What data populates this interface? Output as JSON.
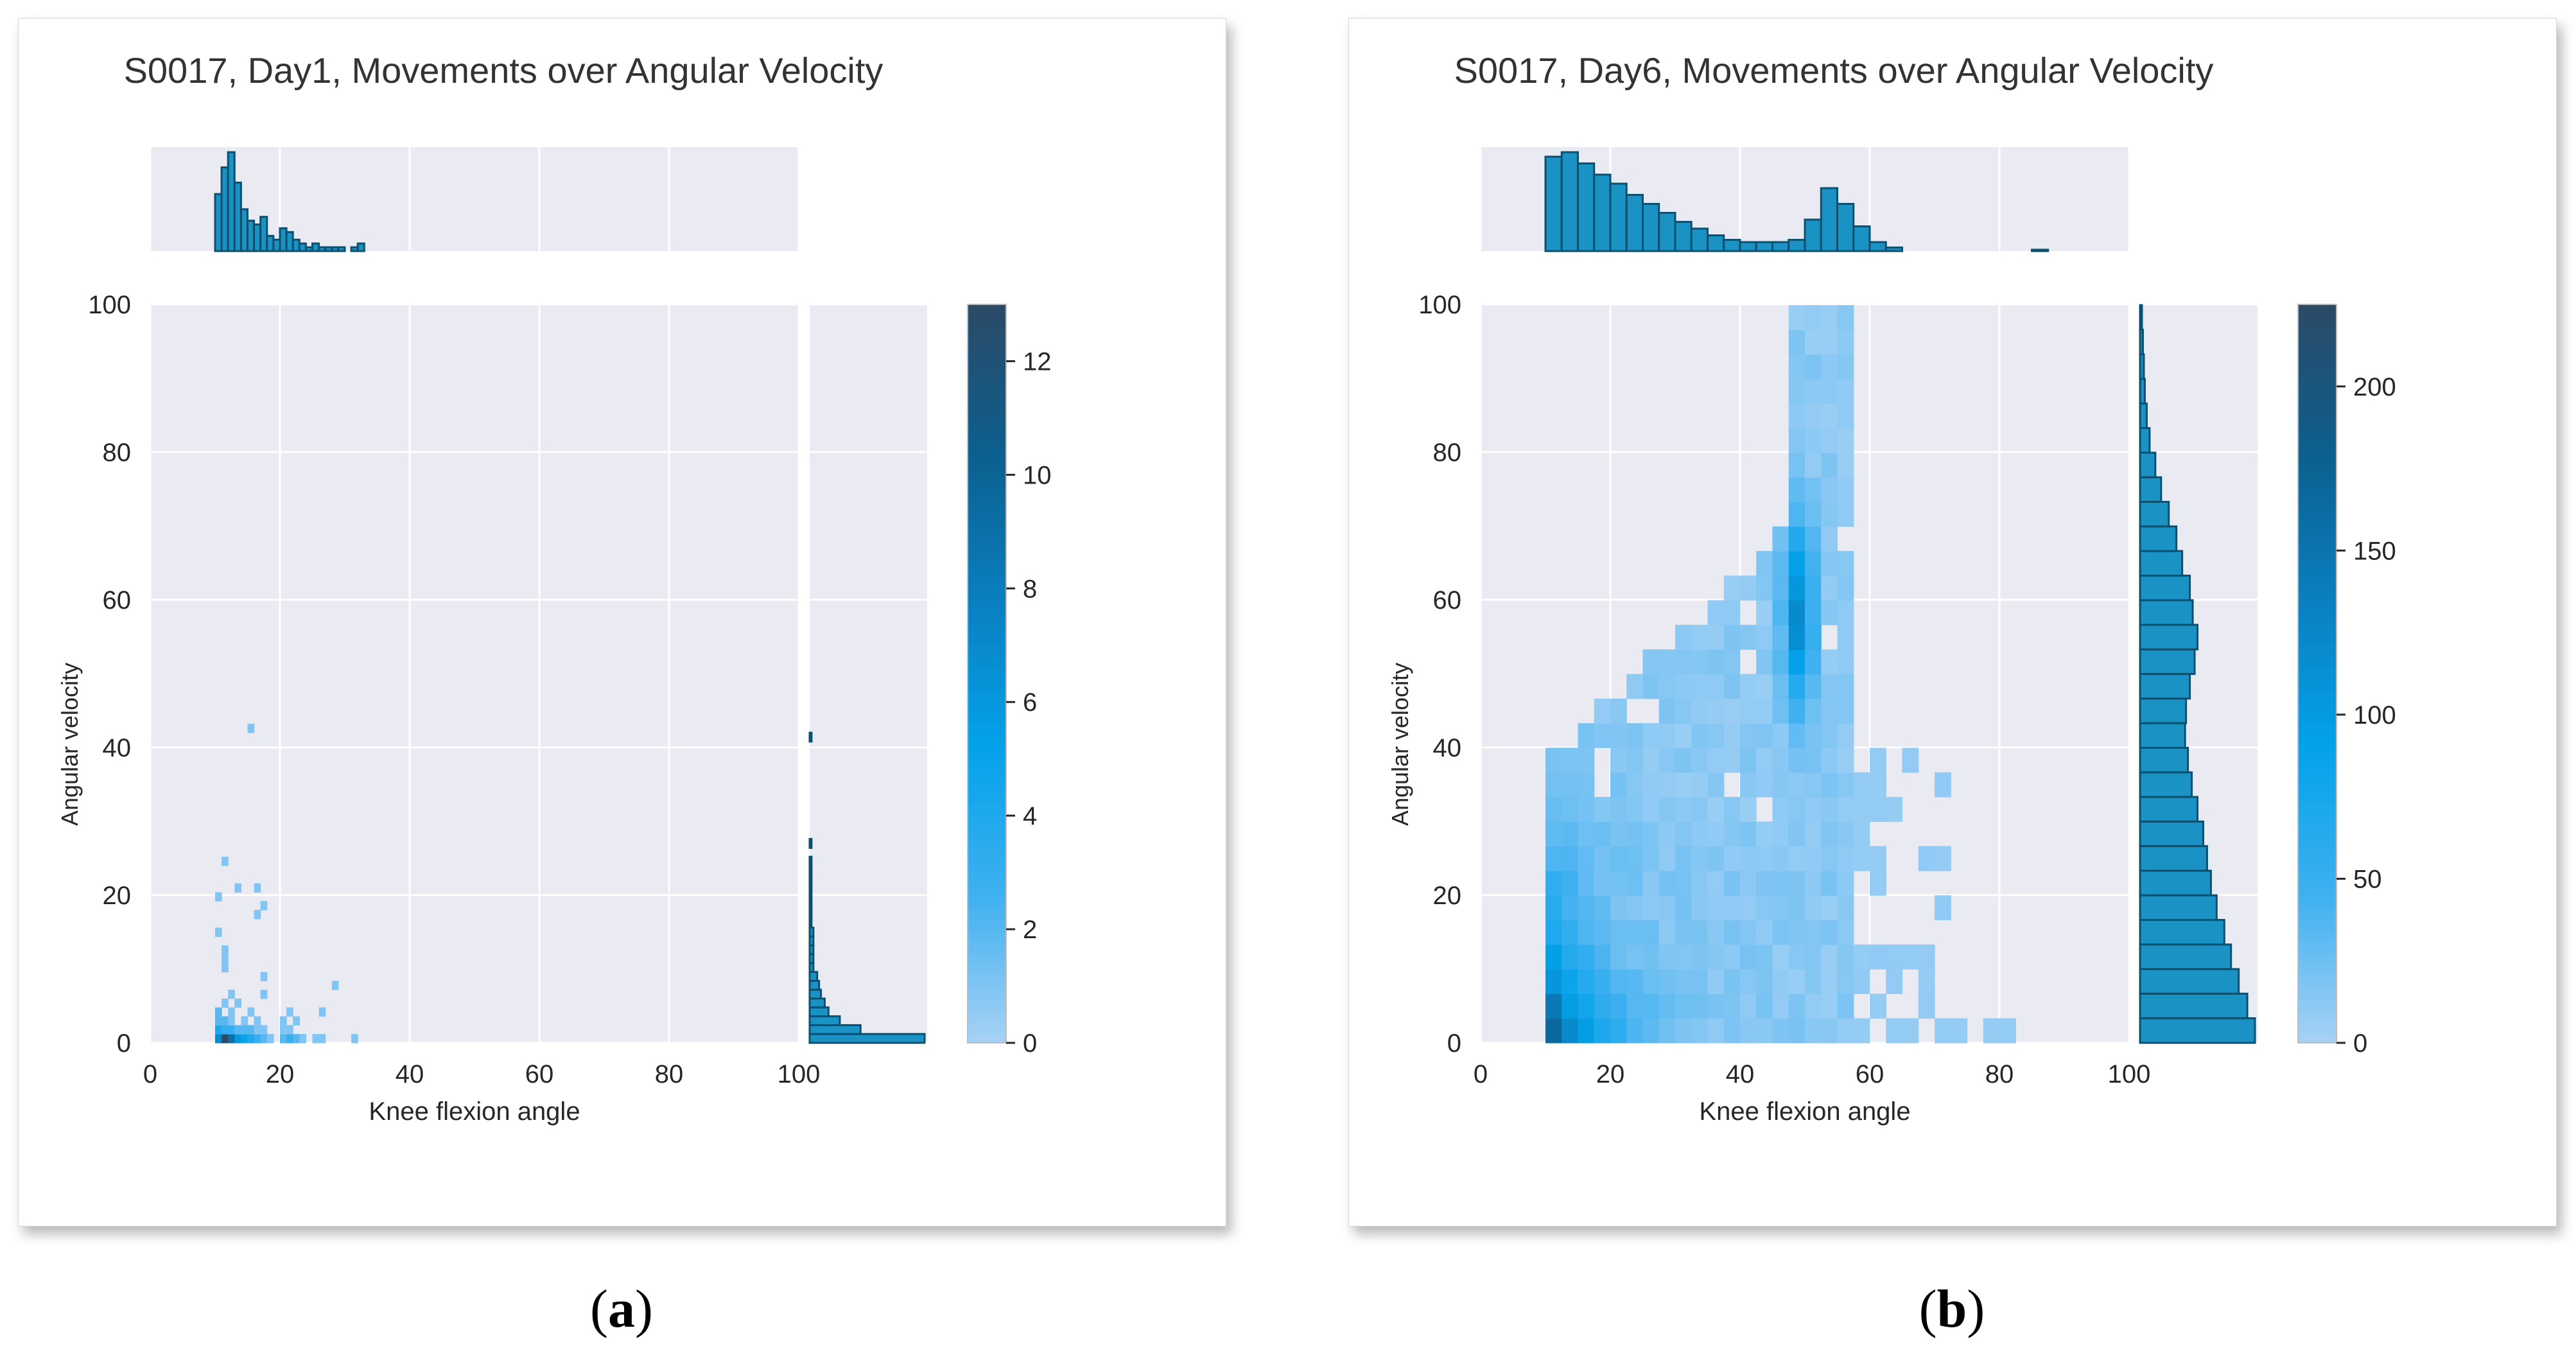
{
  "figure": {
    "panel_labels": [
      {
        "open": "(",
        "letter": "a",
        "close": ")"
      },
      {
        "open": "(",
        "letter": "b",
        "close": ")"
      }
    ]
  },
  "chart_data": [
    {
      "type": "heatmap",
      "title": "S0017, Day1, Movements over Angular Velocity",
      "xlabel": "Knee flexion angle",
      "ylabel": "Angular velocity",
      "xlim": [
        0,
        100
      ],
      "ylim": [
        0,
        100
      ],
      "xticks": [
        0,
        20,
        40,
        60,
        80,
        100
      ],
      "yticks": [
        0,
        20,
        40,
        60,
        80,
        100
      ],
      "bin_width": [
        1,
        1.2
      ],
      "colorbar": {
        "min": 0,
        "max": 13,
        "ticks": [
          0,
          2,
          4,
          6,
          8,
          10,
          12
        ]
      },
      "colors": {
        "panel_bg": "#eaeaf2",
        "grid": "#ffffff",
        "hist_fill": "#1a93c4",
        "hist_edge": "#0d4f6e",
        "cmap": [
          "#a8d2f5",
          "#3fb0f0",
          "#04a2ea",
          "#0a7fc0",
          "#0c5f8e",
          "#2c4a66"
        ]
      },
      "cells": [
        [
          10,
          0,
          7
        ],
        [
          11,
          0,
          13
        ],
        [
          12,
          0,
          9
        ],
        [
          13,
          0,
          6
        ],
        [
          14,
          0,
          5
        ],
        [
          15,
          0,
          4
        ],
        [
          16,
          0,
          3
        ],
        [
          17,
          0,
          2
        ],
        [
          18,
          0,
          1
        ],
        [
          20,
          0,
          2
        ],
        [
          21,
          0,
          3
        ],
        [
          22,
          0,
          2
        ],
        [
          23,
          0,
          1
        ],
        [
          25,
          0,
          1
        ],
        [
          26,
          0,
          1
        ],
        [
          31,
          0,
          1
        ],
        [
          10,
          1.2,
          4
        ],
        [
          11,
          1.2,
          3
        ],
        [
          12,
          1.2,
          3
        ],
        [
          13,
          1.2,
          2
        ],
        [
          14,
          1.2,
          2
        ],
        [
          15,
          1.2,
          2
        ],
        [
          16,
          1.2,
          1
        ],
        [
          17,
          1.2,
          1
        ],
        [
          20,
          1.2,
          1
        ],
        [
          21,
          1.2,
          1
        ],
        [
          10,
          2.4,
          2
        ],
        [
          11,
          2.4,
          2
        ],
        [
          12,
          2.4,
          1
        ],
        [
          14,
          2.4,
          1
        ],
        [
          16,
          2.4,
          1
        ],
        [
          20,
          2.4,
          1
        ],
        [
          22,
          2.4,
          1
        ],
        [
          10,
          3.6,
          2
        ],
        [
          12,
          3.6,
          1
        ],
        [
          15,
          3.6,
          1
        ],
        [
          21,
          3.6,
          1
        ],
        [
          26,
          3.6,
          1
        ],
        [
          11,
          4.8,
          1
        ],
        [
          13,
          4.8,
          1
        ],
        [
          12,
          6.0,
          1
        ],
        [
          17,
          6.0,
          1
        ],
        [
          28,
          7.2,
          1
        ],
        [
          17,
          8.4,
          1
        ],
        [
          11,
          9.6,
          1
        ],
        [
          11,
          10.8,
          1
        ],
        [
          11,
          12.0,
          1
        ],
        [
          10,
          14.4,
          1
        ],
        [
          16,
          16.8,
          1
        ],
        [
          17,
          18.0,
          1
        ],
        [
          10,
          19.2,
          1
        ],
        [
          13,
          20.4,
          1
        ],
        [
          16,
          20.4,
          1
        ],
        [
          11,
          24.0,
          1
        ],
        [
          15,
          42.0,
          1
        ]
      ],
      "marginal_x": {
        "bin_start": 10,
        "bin_width": 1,
        "counts": [
          15,
          22,
          26,
          18,
          11,
          8,
          7,
          9,
          4,
          3,
          6,
          5,
          3,
          2,
          1,
          2,
          1,
          1,
          1,
          1,
          0,
          1,
          2
        ]
      },
      "marginal_y": {
        "bin_width": 1.2,
        "counts": [
          61,
          27,
          16,
          10,
          8,
          6,
          5,
          4,
          2,
          2,
          2,
          2,
          2,
          1,
          1,
          1,
          1,
          1,
          1,
          1,
          1,
          0,
          1,
          0,
          0,
          0,
          0,
          0,
          0,
          0,
          0,
          0,
          0,
          0,
          1
        ]
      }
    },
    {
      "type": "heatmap",
      "title": "S0017, Day6, Movements over Angular Velocity",
      "xlabel": "Knee flexion angle",
      "ylabel": "Angular velocity",
      "xlim": [
        0,
        100
      ],
      "ylim": [
        0,
        100
      ],
      "xticks": [
        0,
        20,
        40,
        60,
        80,
        100
      ],
      "yticks": [
        0,
        20,
        40,
        60,
        80,
        100
      ],
      "bin_width": [
        2.5,
        3.33
      ],
      "colorbar": {
        "min": 0,
        "max": 225,
        "ticks": [
          0,
          50,
          100,
          150,
          200
        ]
      },
      "colors": {
        "panel_bg": "#eaeaf2",
        "grid": "#ffffff",
        "hist_fill": "#1a93c4",
        "hist_edge": "#0d4f6e",
        "cmap": [
          "#a8d2f5",
          "#3fb0f0",
          "#04a2ea",
          "#0a7fc0",
          "#0c5f8e",
          "#2c4a66"
        ]
      },
      "marginal_x": {
        "bin_start": 10,
        "bin_width": 2.5,
        "counts": [
          210,
          220,
          195,
          170,
          150,
          125,
          105,
          85,
          65,
          50,
          35,
          25,
          20,
          20,
          20,
          25,
          70,
          140,
          105,
          55,
          20,
          8,
          0,
          0,
          0,
          0,
          0,
          0,
          0,
          0,
          3
        ]
      },
      "marginal_y": {
        "bin_width": 3.33,
        "counts": [
          120,
          112,
          103,
          95,
          88,
          80,
          74,
          70,
          66,
          60,
          54,
          50,
          47,
          48,
          52,
          57,
          60,
          55,
          52,
          44,
          38,
          30,
          22,
          16,
          10,
          7,
          5,
          4,
          3,
          2
        ]
      }
    }
  ]
}
